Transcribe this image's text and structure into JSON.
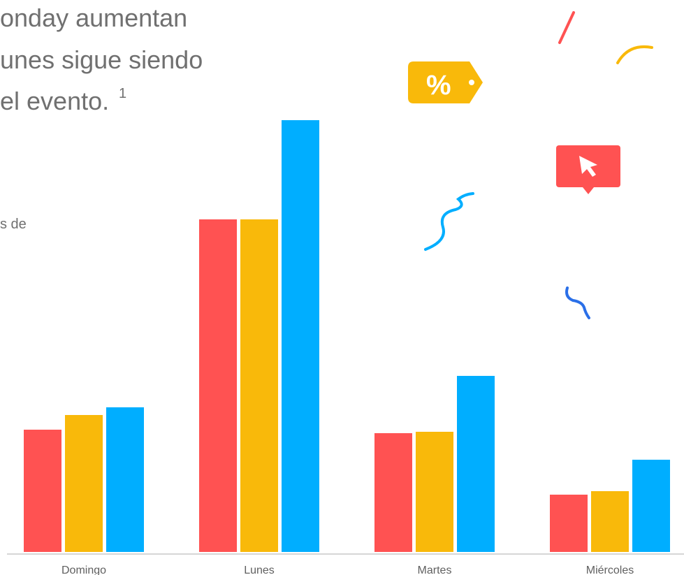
{
  "header": {
    "lines": [
      "onday aumentan",
      "unes sigue siendo",
      "el evento."
    ],
    "footnote_mark": "1",
    "fragment": "s de"
  },
  "chart_data": {
    "type": "bar",
    "categories": [
      "Domingo",
      "Lunes",
      "Martes",
      "Miércoles"
    ],
    "series": [
      {
        "color": "#ff5252",
        "values": [
          175,
          476,
          170,
          82
        ]
      },
      {
        "color": "#f9b90a",
        "values": [
          196,
          476,
          172,
          87
        ]
      },
      {
        "color": "#00aeff",
        "values": [
          207,
          618,
          252,
          132
        ]
      }
    ]
  }
}
